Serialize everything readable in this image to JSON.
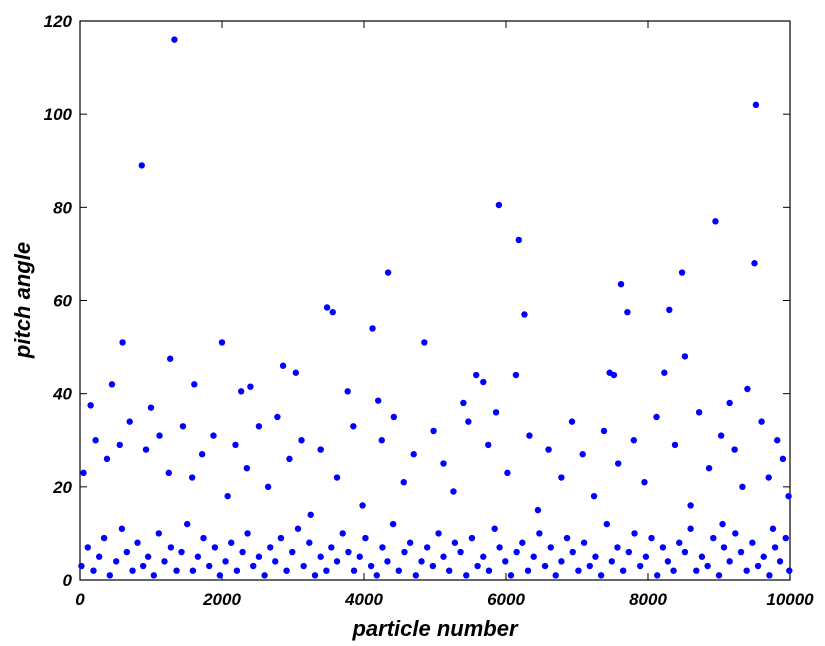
{
  "chart_data": {
    "type": "scatter",
    "xlabel": "particle number",
    "ylabel": "pitch angle",
    "color": "#0000ff",
    "xlim": [
      0,
      10000
    ],
    "xticks": [
      0,
      2000,
      4000,
      6000,
      8000,
      10000
    ],
    "ylim": [
      0,
      120
    ],
    "yticks": [
      0,
      20,
      40,
      60,
      80,
      100,
      120
    ],
    "x": [
      1330,
      870,
      9520,
      5900,
      6180,
      8950,
      9500,
      4340,
      8480,
      7620,
      3480,
      3560,
      6260,
      7710,
      8300,
      4120,
      600,
      2000,
      4850,
      1270,
      2860,
      3040,
      5580,
      5680,
      6140,
      7460,
      7520,
      8230,
      8520,
      450,
      1610,
      3770,
      2270,
      2400,
      9400,
      150,
      1000,
      4200,
      5400,
      9150,
      50,
      220,
      380,
      560,
      700,
      930,
      1120,
      1250,
      1450,
      1580,
      1720,
      1880,
      2080,
      2190,
      2350,
      2520,
      2650,
      2780,
      2950,
      3120,
      3250,
      3390,
      3620,
      3850,
      3980,
      4250,
      4420,
      4560,
      4700,
      4980,
      5120,
      5260,
      5470,
      5750,
      5860,
      6020,
      6330,
      6450,
      6600,
      6780,
      6930,
      7080,
      7240,
      7380,
      7580,
      7800,
      7950,
      8120,
      8380,
      8600,
      8720,
      8860,
      9030,
      9220,
      9330,
      9600,
      9700,
      9820,
      9900,
      9980,
      20,
      110,
      190,
      270,
      340,
      420,
      510,
      590,
      660,
      740,
      810,
      890,
      960,
      1040,
      1110,
      1190,
      1280,
      1360,
      1430,
      1510,
      1590,
      1660,
      1740,
      1820,
      1900,
      1970,
      2050,
      2130,
      2210,
      2290,
      2360,
      2440,
      2520,
      2600,
      2680,
      2750,
      2830,
      2910,
      2990,
      3070,
      3150,
      3230,
      3310,
      3390,
      3470,
      3540,
      3620,
      3700,
      3780,
      3860,
      3940,
      4020,
      4100,
      4180,
      4260,
      4330,
      4410,
      4490,
      4570,
      4650,
      4730,
      4810,
      4890,
      4970,
      5050,
      5120,
      5200,
      5280,
      5360,
      5440,
      5520,
      5600,
      5680,
      5760,
      5840,
      5910,
      5990,
      6070,
      6150,
      6230,
      6310,
      6390,
      6470,
      6550,
      6630,
      6700,
      6780,
      6860,
      6940,
      7020,
      7100,
      7180,
      7260,
      7340,
      7420,
      7490,
      7570,
      7650,
      7730,
      7810,
      7890,
      7970,
      8050,
      8130,
      8210,
      8280,
      8360,
      8440,
      8520,
      8600,
      8680,
      8760,
      8840,
      8920,
      9000,
      9070,
      9150,
      9230,
      9310,
      9390,
      9470,
      9550,
      9630,
      9710,
      9790,
      9860,
      9940,
      9990,
      9760,
      9050
    ],
    "values": [
      116,
      89,
      102,
      80.5,
      73,
      77,
      68,
      66,
      66,
      63.5,
      58.5,
      57.5,
      57,
      57.5,
      58,
      54,
      51,
      51,
      51,
      47.5,
      46,
      44.5,
      44,
      42.5,
      44,
      44.5,
      44,
      44.5,
      48,
      42,
      42,
      40.5,
      40.5,
      41.5,
      41,
      37.5,
      37,
      38.5,
      38,
      38,
      23,
      30,
      26,
      29,
      34,
      28,
      31,
      23,
      33,
      22,
      27,
      31,
      18,
      29,
      24,
      33,
      20,
      35,
      26,
      30,
      14,
      28,
      22,
      33,
      16,
      30,
      35,
      21,
      27,
      32,
      25,
      19,
      34,
      29,
      36,
      23,
      31,
      15,
      28,
      22,
      34,
      27,
      18,
      32,
      25,
      30,
      21,
      35,
      29,
      16,
      36,
      24,
      31,
      28,
      20,
      34,
      22,
      30,
      26,
      18,
      3,
      7,
      2,
      5,
      9,
      1,
      4,
      11,
      6,
      2,
      8,
      3,
      5,
      1,
      10,
      4,
      7,
      2,
      6,
      12,
      2,
      5,
      9,
      3,
      7,
      1,
      4,
      8,
      2,
      6,
      10,
      3,
      5,
      1,
      7,
      4,
      9,
      2,
      6,
      11,
      3,
      8,
      1,
      5,
      2,
      7,
      4,
      10,
      6,
      2,
      5,
      9,
      3,
      1,
      7,
      4,
      12,
      2,
      6,
      8,
      1,
      4,
      7,
      3,
      10,
      5,
      2,
      8,
      6,
      1,
      9,
      3,
      5,
      2,
      11,
      7,
      4,
      1,
      6,
      8,
      2,
      5,
      10,
      3,
      7,
      1,
      4,
      9,
      6,
      2,
      8,
      3,
      5,
      1,
      12,
      4,
      7,
      2,
      6,
      10,
      3,
      5,
      9,
      1,
      7,
      4,
      2,
      8,
      6,
      11,
      2,
      5,
      3,
      9,
      1,
      7,
      4,
      10,
      6,
      2,
      8,
      3,
      5,
      1,
      7,
      4,
      9,
      2,
      11,
      12
    ]
  }
}
